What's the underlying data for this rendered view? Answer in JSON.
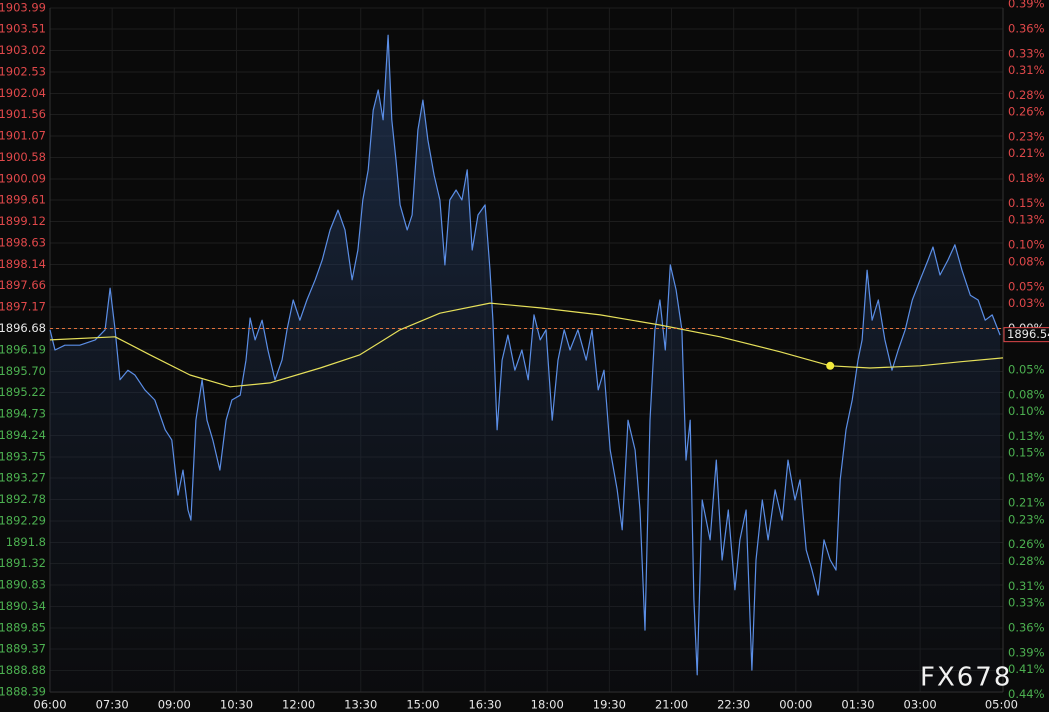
{
  "chart_data": {
    "type": "line",
    "watermark": "FX678",
    "reference": 1896.68,
    "reference_color": "#e0703c",
    "last_price": 1896.54,
    "up_color": "#e0484a",
    "down_color": "#4cb050",
    "flat_color": "#e8e8e8",
    "grid": true,
    "xlim": [
      0,
      23
    ],
    "xticks": [
      {
        "value": 0,
        "label": "06:00"
      },
      {
        "value": 1.5,
        "label": "07:30"
      },
      {
        "value": 3,
        "label": "09:00"
      },
      {
        "value": 4.5,
        "label": "10:30"
      },
      {
        "value": 6,
        "label": "12:00"
      },
      {
        "value": 7.5,
        "label": "13:30"
      },
      {
        "value": 9,
        "label": "15:00"
      },
      {
        "value": 10.5,
        "label": "16:30"
      },
      {
        "value": 12,
        "label": "18:00"
      },
      {
        "value": 13.5,
        "label": "19:30"
      },
      {
        "value": 15,
        "label": "21:00"
      },
      {
        "value": 16.5,
        "label": "22:30"
      },
      {
        "value": 18,
        "label": "00:00"
      },
      {
        "value": 19.5,
        "label": "01:30"
      },
      {
        "value": 21,
        "label": "03:00"
      },
      {
        "value": 23,
        "label": "05:00"
      }
    ],
    "ylim": [
      1888.39,
      1903.99
    ],
    "yticks": [
      1903.99,
      1903.51,
      1903.02,
      1902.53,
      1902.04,
      1901.56,
      1901.07,
      1900.58,
      1900.09,
      1899.61,
      1899.12,
      1898.63,
      1898.14,
      1897.66,
      1897.17,
      1896.68,
      1896.19,
      {
        "value": 1895.7,
        "label": "1895.70"
      },
      1895.22,
      1894.73,
      1894.24,
      1893.75,
      1893.27,
      1892.78,
      1892.29,
      1891.8,
      1891.32,
      1890.83,
      1890.34,
      1889.85,
      1889.37,
      1888.88,
      1888.39
    ],
    "y2lim": [
      -0.437,
      0.385
    ],
    "y2ticks": [
      {
        "value": 0.39,
        "label": "0.39%"
      },
      {
        "value": 0.36,
        "label": "0.36%"
      },
      {
        "value": 0.33,
        "label": "0.33%"
      },
      {
        "value": 0.31,
        "label": "0.31%"
      },
      {
        "value": 0.28,
        "label": "0.28%"
      },
      {
        "value": 0.26,
        "label": "0.26%"
      },
      {
        "value": 0.23,
        "label": "0.23%"
      },
      {
        "value": 0.21,
        "label": "0.21%"
      },
      {
        "value": 0.18,
        "label": "0.18%"
      },
      {
        "value": 0.15,
        "label": "0.15%"
      },
      {
        "value": 0.13,
        "label": "0.13%"
      },
      {
        "value": 0.1,
        "label": "0.10%"
      },
      {
        "value": 0.08,
        "label": "0.08%"
      },
      {
        "value": 0.05,
        "label": "0.05%"
      },
      {
        "value": 0.03,
        "label": "0.03%"
      },
      {
        "value": 0,
        "label": "0.00%"
      },
      {
        "value": -0.05,
        "label": "0.05%"
      },
      {
        "value": -0.08,
        "label": "0.08%"
      },
      {
        "value": -0.1,
        "label": "0.10%"
      },
      {
        "value": -0.13,
        "label": "0.13%"
      },
      {
        "value": -0.15,
        "label": "0.15%"
      },
      {
        "value": -0.18,
        "label": "0.18%"
      },
      {
        "value": -0.21,
        "label": "0.21%"
      },
      {
        "value": -0.23,
        "label": "0.23%"
      },
      {
        "value": -0.26,
        "label": "0.26%"
      },
      {
        "value": -0.28,
        "label": "0.28%"
      },
      {
        "value": -0.31,
        "label": "0.31%"
      },
      {
        "value": -0.33,
        "label": "0.33%"
      },
      {
        "value": -0.36,
        "label": "0.36%"
      },
      {
        "value": -0.39,
        "label": "0.39%"
      },
      {
        "value": -0.41,
        "label": "0.41%"
      },
      {
        "value": -0.44,
        "label": "0.44%"
      }
    ],
    "series": [
      {
        "color": "#5b8ee6",
        "area": true,
        "x": [
          0,
          0.12,
          0.36,
          0.72,
          1.09,
          1.33,
          1.45,
          1.57,
          1.69,
          1.88,
          2.05,
          2.29,
          2.53,
          2.78,
          2.94,
          3.09,
          3.21,
          3.33,
          3.4,
          3.52,
          3.67,
          3.79,
          3.93,
          4.1,
          4.25,
          4.39,
          4.59,
          4.73,
          4.83,
          4.95,
          5.12,
          5.26,
          5.43,
          5.6,
          5.72,
          5.87,
          6.03,
          6.2,
          6.4,
          6.57,
          6.76,
          6.95,
          7.12,
          7.29,
          7.43,
          7.55,
          7.68,
          7.8,
          7.92,
          8.04,
          8.16,
          8.25,
          8.35,
          8.45,
          8.62,
          8.74,
          8.88,
          9,
          9.12,
          9.27,
          9.41,
          9.53,
          9.65,
          9.8,
          9.94,
          10.07,
          10.19,
          10.33,
          10.5,
          10.62,
          10.69,
          10.79,
          10.91,
          11.05,
          11.22,
          11.39,
          11.54,
          11.68,
          11.83,
          11.97,
          12.12,
          12.26,
          12.41,
          12.55,
          12.74,
          12.94,
          13.08,
          13.23,
          13.37,
          13.52,
          13.69,
          13.81,
          13.95,
          14.12,
          14.24,
          14.36,
          14.48,
          14.6,
          14.72,
          14.85,
          14.97,
          15.11,
          15.25,
          15.35,
          15.45,
          15.54,
          15.62,
          15.74,
          15.93,
          16.08,
          16.22,
          16.37,
          16.53,
          16.65,
          16.8,
          16.94,
          17.04,
          17.19,
          17.33,
          17.5,
          17.67,
          17.81,
          17.98,
          18.1,
          18.25,
          18.39,
          18.54,
          18.68,
          18.83,
          18.97,
          19.07,
          19.21,
          19.36,
          19.5,
          19.6,
          19.72,
          19.84,
          19.99,
          20.15,
          20.32,
          20.47,
          20.64,
          20.81,
          21,
          21.19,
          21.31,
          21.48,
          21.67,
          21.84,
          22.01,
          22.21,
          22.4,
          22.57,
          22.74,
          22.93
        ],
        "values": [
          1896.65,
          1896.19,
          1896.3,
          1896.3,
          1896.42,
          1896.65,
          1897.6,
          1896.65,
          1895.51,
          1895.73,
          1895.62,
          1895.28,
          1895.05,
          1894.37,
          1894.14,
          1892.88,
          1893.45,
          1892.54,
          1892.31,
          1894.59,
          1895.51,
          1894.59,
          1894.14,
          1893.45,
          1894.59,
          1895.05,
          1895.16,
          1895.96,
          1896.92,
          1896.42,
          1896.87,
          1896.19,
          1895.51,
          1895.96,
          1896.65,
          1897.33,
          1896.87,
          1897.33,
          1897.79,
          1898.24,
          1898.93,
          1899.38,
          1898.93,
          1897.79,
          1898.47,
          1899.61,
          1900.3,
          1901.66,
          1902.12,
          1901.44,
          1903.37,
          1901.44,
          1900.52,
          1899.5,
          1898.93,
          1899.27,
          1901.21,
          1901.89,
          1900.98,
          1900.18,
          1899.61,
          1898.13,
          1899.61,
          1899.84,
          1899.61,
          1900.3,
          1898.47,
          1899.27,
          1899.5,
          1898.01,
          1896.87,
          1894.37,
          1895.96,
          1896.53,
          1895.73,
          1896.19,
          1895.51,
          1896.99,
          1896.42,
          1896.65,
          1894.59,
          1895.96,
          1896.65,
          1896.19,
          1896.65,
          1895.96,
          1896.65,
          1895.28,
          1895.73,
          1893.91,
          1893,
          1892.09,
          1894.59,
          1893.91,
          1892.54,
          1889.8,
          1894.59,
          1896.65,
          1897.33,
          1896.19,
          1898.13,
          1897.56,
          1896.65,
          1893.68,
          1894.59,
          1890.49,
          1888.78,
          1892.77,
          1891.86,
          1893.68,
          1891.4,
          1892.54,
          1890.72,
          1891.86,
          1892.54,
          1888.89,
          1891.4,
          1892.77,
          1891.86,
          1893,
          1892.31,
          1893.68,
          1892.77,
          1893.23,
          1891.63,
          1891.17,
          1890.6,
          1891.86,
          1891.4,
          1891.17,
          1893.23,
          1894.37,
          1895.05,
          1895.96,
          1896.42,
          1898.01,
          1896.87,
          1897.33,
          1896.42,
          1895.73,
          1896.19,
          1896.65,
          1897.33,
          1897.79,
          1898.24,
          1898.54,
          1897.9,
          1898.24,
          1898.59,
          1898.01,
          1897.44,
          1897.33,
          1896.87,
          1896.99,
          1896.53
        ]
      },
      {
        "color": "#e6e05a",
        "area": false,
        "x": [
          0,
          1.57,
          2.41,
          3.38,
          4.35,
          5.31,
          6.52,
          7.48,
          8.45,
          9.41,
          10.62,
          11.83,
          13.28,
          14.72,
          16.17,
          17.62,
          18.83,
          19.79,
          21,
          21.96,
          23
        ],
        "values": [
          1896.42,
          1896.49,
          1896.08,
          1895.62,
          1895.35,
          1895.44,
          1895.78,
          1896.08,
          1896.65,
          1897.03,
          1897.26,
          1897.15,
          1896.99,
          1896.76,
          1896.49,
          1896.15,
          1895.83,
          1895.78,
          1895.83,
          1895.92,
          1896.01
        ]
      }
    ],
    "highlight": {
      "x": 18.83,
      "y": 1895.83,
      "color": "#f2ea3c"
    }
  }
}
